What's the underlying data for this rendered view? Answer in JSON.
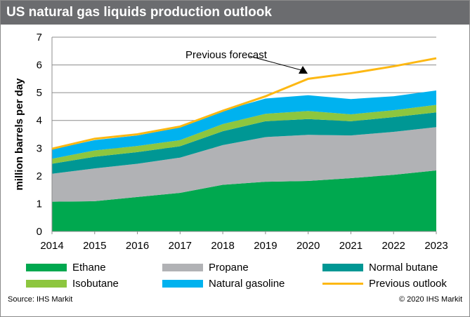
{
  "chart_data": {
    "type": "area",
    "stacked": true,
    "title": "US natural gas liquids production outlook",
    "ylabel": "million barrels per day",
    "xlabel": "",
    "ylim": [
      0,
      7
    ],
    "yticks": [
      "0",
      "1",
      "2",
      "3",
      "4",
      "5",
      "6",
      "7"
    ],
    "x": [
      "2014",
      "2015",
      "2016",
      "2017",
      "2018",
      "2019",
      "2020",
      "2021",
      "2022",
      "2023"
    ],
    "grid": true,
    "series": [
      {
        "name": "Ethane",
        "color": "#00a84f",
        "values": [
          1.07,
          1.09,
          1.24,
          1.39,
          1.68,
          1.79,
          1.82,
          1.92,
          2.04,
          2.2
        ]
      },
      {
        "name": "Propane",
        "color": "#b1b2b5",
        "values": [
          1.01,
          1.18,
          1.2,
          1.27,
          1.43,
          1.61,
          1.66,
          1.54,
          1.55,
          1.56
        ]
      },
      {
        "name": "Normal butane",
        "color": "#009794",
        "values": [
          0.36,
          0.42,
          0.42,
          0.41,
          0.5,
          0.57,
          0.57,
          0.51,
          0.53,
          0.53
        ]
      },
      {
        "name": "Isobutane",
        "color": "#8dc63f",
        "values": [
          0.18,
          0.23,
          0.22,
          0.22,
          0.26,
          0.27,
          0.29,
          0.25,
          0.25,
          0.27
        ]
      },
      {
        "name": "Natural gasoline",
        "color": "#00b2ef",
        "values": [
          0.34,
          0.37,
          0.38,
          0.46,
          0.48,
          0.55,
          0.57,
          0.55,
          0.5,
          0.52
        ]
      }
    ],
    "line": {
      "name": "Previous outlook",
      "color": "#fdb813",
      "values": [
        2.98,
        3.34,
        3.5,
        3.78,
        4.35,
        4.87,
        5.5,
        5.7,
        5.95,
        6.24
      ]
    },
    "annotation": {
      "text": "Previous forecast",
      "points_to_year": "2020"
    },
    "legend_placement": "bottom"
  },
  "footer": {
    "source": "Source: IHS Markit",
    "copyright": "© 2020 IHS Markit"
  }
}
